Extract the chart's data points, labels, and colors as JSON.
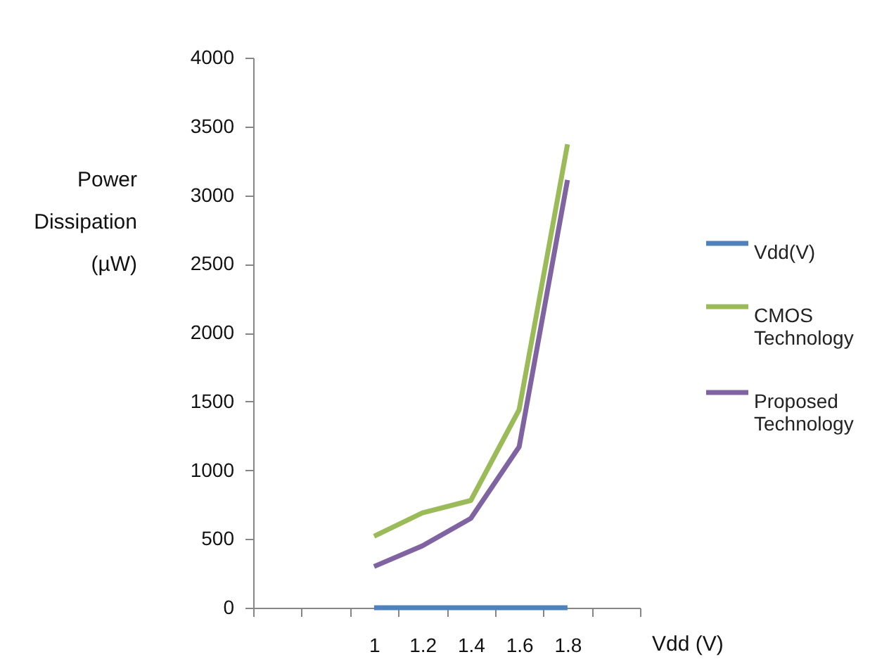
{
  "chart_data": {
    "type": "line",
    "xlabel": "Vdd (V)",
    "ylabel": "Power Dissipation (µW)",
    "categories": [
      null,
      null,
      "1",
      "1.2",
      "1.4",
      "1.6",
      "1.8",
      null
    ],
    "series": [
      {
        "name": "Vdd(V)",
        "color": "#4f81bd",
        "values": [
          null,
          null,
          0,
          0,
          0,
          0,
          0,
          null
        ]
      },
      {
        "name": "CMOS Technology",
        "color": "#9bbb59",
        "values": [
          null,
          null,
          520,
          690,
          780,
          1440,
          3370,
          null
        ]
      },
      {
        "name": "Proposed Technology",
        "color": "#8064a2",
        "values": [
          null,
          null,
          300,
          450,
          650,
          1170,
          3110,
          null
        ]
      }
    ],
    "ylim": [
      0,
      4000
    ],
    "yticks": [
      0,
      500,
      1000,
      1500,
      2000,
      2500,
      3000,
      3500,
      4000
    ],
    "grid": false,
    "legend": "right",
    "marker": "none",
    "line_style": "solid"
  }
}
